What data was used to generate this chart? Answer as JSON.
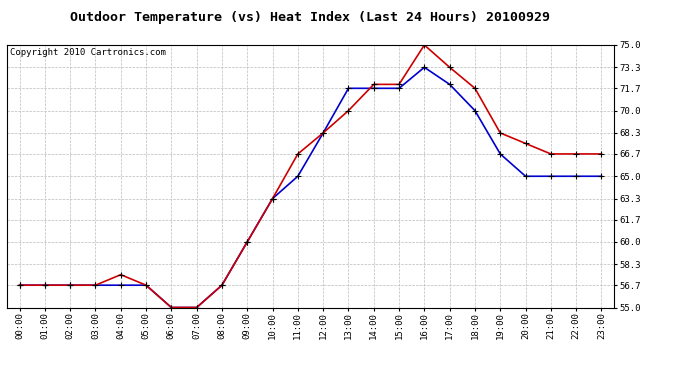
{
  "title": "Outdoor Temperature (vs) Heat Index (Last 24 Hours) 20100929",
  "copyright": "Copyright 2010 Cartronics.com",
  "hours": [
    "00:00",
    "01:00",
    "02:00",
    "03:00",
    "04:00",
    "05:00",
    "06:00",
    "07:00",
    "08:00",
    "09:00",
    "10:00",
    "11:00",
    "12:00",
    "13:00",
    "14:00",
    "15:00",
    "16:00",
    "17:00",
    "18:00",
    "19:00",
    "20:00",
    "21:00",
    "22:00",
    "23:00"
  ],
  "temp": [
    56.7,
    56.7,
    56.7,
    56.7,
    57.5,
    56.7,
    55.0,
    55.0,
    56.7,
    60.0,
    63.3,
    66.7,
    68.3,
    70.0,
    72.0,
    72.0,
    75.0,
    73.3,
    71.7,
    68.3,
    67.5,
    66.7,
    66.7,
    66.7
  ],
  "heat_index": [
    56.7,
    56.7,
    56.7,
    56.7,
    56.7,
    56.7,
    55.0,
    55.0,
    56.7,
    60.0,
    63.3,
    65.0,
    68.3,
    71.7,
    71.7,
    71.7,
    73.3,
    72.0,
    70.0,
    66.7,
    65.0,
    65.0,
    65.0,
    65.0
  ],
  "ylim": [
    55.0,
    75.0
  ],
  "yticks": [
    55.0,
    56.7,
    58.3,
    60.0,
    61.7,
    63.3,
    65.0,
    66.7,
    68.3,
    70.0,
    71.7,
    73.3,
    75.0
  ],
  "ytick_labels": [
    "55.0",
    "56.7",
    "58.3",
    "60.0",
    "61.7",
    "63.3",
    "65.0",
    "66.7",
    "68.3",
    "70.0",
    "71.7",
    "73.3",
    "75.0"
  ],
  "temp_color": "#cc0000",
  "heat_index_color": "#0000cc",
  "grid_color": "#bbbbbb",
  "bg_color": "#ffffff",
  "title_fontsize": 9.5,
  "copyright_fontsize": 6.5,
  "tick_fontsize": 6.5,
  "marker": "+",
  "marker_color": "#000000",
  "marker_size": 4,
  "linewidth": 1.2
}
